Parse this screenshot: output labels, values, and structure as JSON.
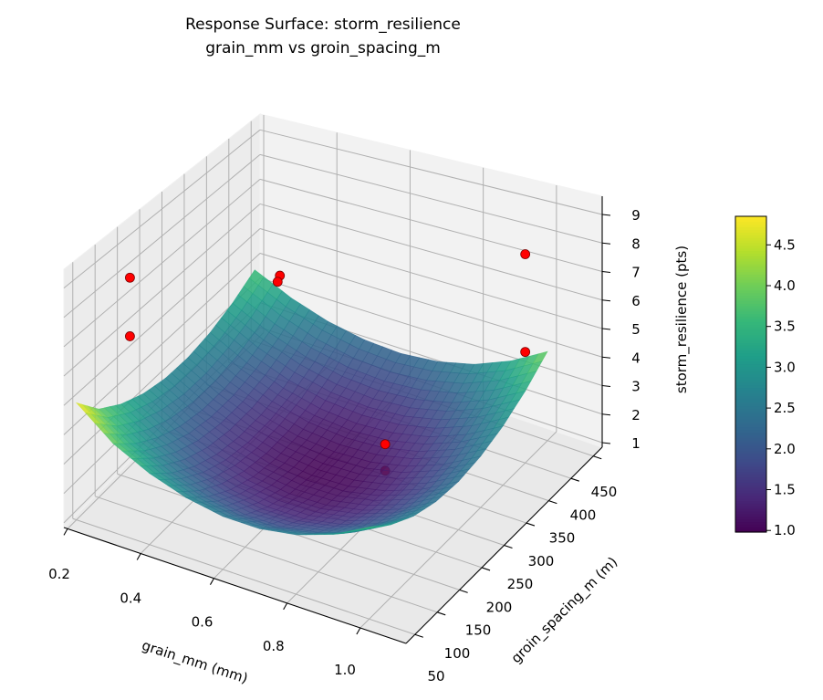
{
  "chart_data": {
    "type": "surface",
    "title": "Response Surface: storm_resilience",
    "subtitle": "grain_mm vs groin_spacing_m",
    "xlabel": "grain_mm (mm)",
    "ylabel": "groin_spacing_m (m)",
    "zlabel": "storm_resilience (pts)",
    "xlim": [
      0.19,
      1.125
    ],
    "ylim": [
      30,
      470
    ],
    "zlim": [
      0.84,
      9.64
    ],
    "xticks": [
      "0.2",
      "0.4",
      "0.6",
      "0.8",
      "1.0"
    ],
    "yticks": [
      "50",
      "100",
      "150",
      "200",
      "250",
      "300",
      "350",
      "400",
      "450"
    ],
    "zticks": [
      "1",
      "2",
      "3",
      "4",
      "5",
      "6",
      "7",
      "8",
      "9"
    ],
    "grid": true,
    "colormap": "viridis",
    "colorbar": {
      "range": [
        0.98,
        4.85
      ],
      "ticks": [
        "1.0",
        "1.5",
        "2.0",
        "2.5",
        "3.0",
        "3.5",
        "4.0",
        "4.5"
      ]
    },
    "surface": {
      "x": [
        0.2,
        0.3,
        0.4,
        0.5,
        0.6,
        0.7,
        0.8,
        0.9,
        1.0
      ],
      "y": [
        50,
        100,
        150,
        200,
        250,
        300,
        350,
        400,
        450
      ],
      "z": [
        [
          4.85,
          3.93,
          3.37,
          2.99,
          2.78,
          2.75,
          2.9,
          3.22,
          3.71
        ],
        [
          3.84,
          3.13,
          2.59,
          2.23,
          2.04,
          2.03,
          2.19,
          2.53,
          3.04
        ],
        [
          3.21,
          2.52,
          2.0,
          1.66,
          1.5,
          1.51,
          1.69,
          2.05,
          2.58
        ],
        [
          2.79,
          2.12,
          1.62,
          1.3,
          1.15,
          1.18,
          1.38,
          1.76,
          2.32
        ],
        [
          2.56,
          1.91,
          1.44,
          1.14,
          1.01,
          1.06,
          1.28,
          1.68,
          2.25
        ],
        [
          2.54,
          1.91,
          1.45,
          1.17,
          1.06,
          1.13,
          1.38,
          1.8,
          2.39
        ],
        [
          2.72,
          2.11,
          1.67,
          1.41,
          1.32,
          1.41,
          1.67,
          2.11,
          2.72
        ],
        [
          3.09,
          2.5,
          2.08,
          1.84,
          1.78,
          1.89,
          2.17,
          2.63,
          3.26
        ],
        [
          3.67,
          3.1,
          2.7,
          2.48,
          2.43,
          2.56,
          2.86,
          3.34,
          4.0
        ]
      ]
    },
    "points": [
      {
        "x": 0.2,
        "y": 170,
        "z": 7.6
      },
      {
        "x": 0.2,
        "y": 170,
        "z": 5.5
      },
      {
        "x": 0.5,
        "y": 260,
        "z": 7.5
      },
      {
        "x": 0.5,
        "y": 255,
        "z": 7.35
      },
      {
        "x": 1.0,
        "y": 400,
        "z": 8.1
      },
      {
        "x": 1.0,
        "y": 400,
        "z": 4.7
      },
      {
        "x": 0.8,
        "y": 250,
        "z": 2.9
      },
      {
        "x": 0.8,
        "y": 250,
        "z": 2.0
      }
    ],
    "point_color": "#ff0000"
  }
}
